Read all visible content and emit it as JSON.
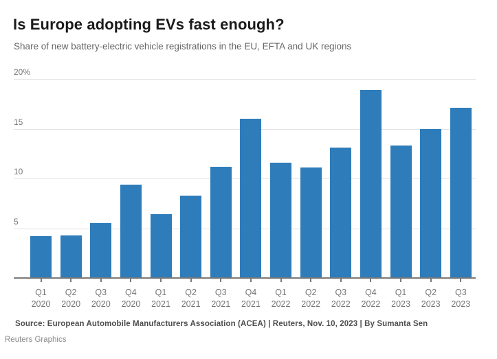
{
  "header": {
    "title": "Is Europe adopting EVs fast enough?",
    "subtitle": "Share of new battery-electric vehicle registrations in the EU, EFTA and UK regions"
  },
  "chart_data": {
    "type": "bar",
    "title": "Is Europe adopting EVs fast enough?",
    "subtitle": "Share of new battery-electric vehicle registrations in the EU, EFTA and UK regions",
    "categories": [
      {
        "quarter": "Q1",
        "year": "2020"
      },
      {
        "quarter": "Q2",
        "year": "2020"
      },
      {
        "quarter": "Q3",
        "year": "2020"
      },
      {
        "quarter": "Q4",
        "year": "2020"
      },
      {
        "quarter": "Q1",
        "year": "2021"
      },
      {
        "quarter": "Q2",
        "year": "2021"
      },
      {
        "quarter": "Q3",
        "year": "2021"
      },
      {
        "quarter": "Q4",
        "year": "2021"
      },
      {
        "quarter": "Q1",
        "year": "2022"
      },
      {
        "quarter": "Q2",
        "year": "2022"
      },
      {
        "quarter": "Q3",
        "year": "2022"
      },
      {
        "quarter": "Q4",
        "year": "2022"
      },
      {
        "quarter": "Q1",
        "year": "2023"
      },
      {
        "quarter": "Q2",
        "year": "2023"
      },
      {
        "quarter": "Q3",
        "year": "2023"
      }
    ],
    "values": [
      4.2,
      4.3,
      5.5,
      9.4,
      6.4,
      8.3,
      11.2,
      16.0,
      11.6,
      11.1,
      13.1,
      18.9,
      13.3,
      15.0,
      17.1
    ],
    "unit": "%",
    "xlabel": "",
    "ylabel": "",
    "ylim": [
      0,
      20
    ],
    "yticks": [
      {
        "value": 5,
        "label": "5"
      },
      {
        "value": 10,
        "label": "10"
      },
      {
        "value": 15,
        "label": "15"
      },
      {
        "value": 20,
        "label": "20%"
      }
    ],
    "grid": true,
    "legend": false,
    "bar_color": "#2e7cba"
  },
  "footer": {
    "source": "Source: European Automobile Manufacturers Association (ACEA) | Reuters, Nov. 10, 2023 | By Sumanta Sen",
    "credit": "Reuters Graphics"
  }
}
